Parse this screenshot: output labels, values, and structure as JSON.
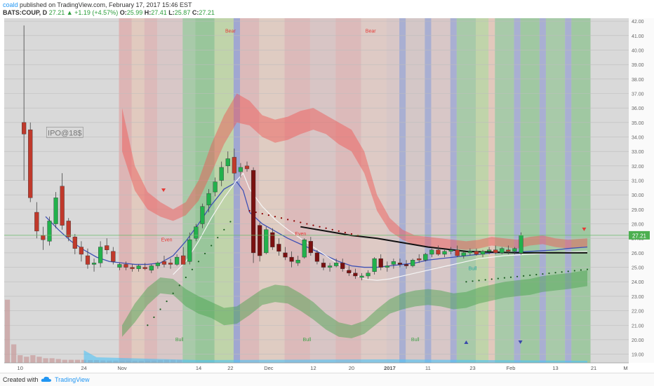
{
  "header": {
    "user": "coald",
    "published_text": "published on TradingView.com, February 17, 2017 15:46 EST",
    "symbol": "BATS:COUP, D",
    "last": "27.21",
    "change": "▲ +1.19 (+4.57%)",
    "o_label": "O:",
    "o_value": "25.99",
    "h_label": "H:",
    "h_value": "27.41",
    "l_label": "L:",
    "l_value": "25.87",
    "c_label": "C:",
    "c_value": "27.21"
  },
  "footer": {
    "created": "Created with",
    "brand": "TradingView"
  },
  "colors": {
    "up": "#22b14c",
    "down": "#c0392b",
    "downDark": "#7a1010",
    "redBand": "#e57373",
    "greenBand": "#4caf50",
    "blueBand": "#7986cb",
    "sma": "#3f51b5",
    "ema": "#f5f5f5",
    "maLong": "#111111",
    "priceLine": "#66bb6a"
  },
  "chart_data": {
    "type": "candlestick",
    "ylim": [
      18.4,
      42.2
    ],
    "yticks": [
      "19.00",
      "20.00",
      "21.00",
      "22.00",
      "23.00",
      "24.00",
      "25.00",
      "26.00",
      "27.00",
      "28.00",
      "29.00",
      "30.00",
      "31.00",
      "32.00",
      "33.00",
      "34.00",
      "35.00",
      "36.00",
      "37.00",
      "38.00",
      "39.00",
      "40.00",
      "41.00",
      "42.00"
    ],
    "last_price_label": "27.21",
    "last_price": 27.21,
    "xticks": [
      {
        "label": "10",
        "i": 2
      },
      {
        "label": "24",
        "i": 12
      },
      {
        "label": "Nov",
        "i": 18
      },
      {
        "label": "14",
        "i": 30
      },
      {
        "label": "22",
        "i": 35
      },
      {
        "label": "Dec",
        "i": 41
      },
      {
        "label": "12",
        "i": 48
      },
      {
        "label": "20",
        "i": 54
      },
      {
        "label": "2017",
        "i": 60
      },
      {
        "label": "11",
        "i": 66
      },
      {
        "label": "23",
        "i": 73
      },
      {
        "label": "Feb",
        "i": 79
      },
      {
        "label": "13",
        "i": 86
      },
      {
        "label": "21",
        "i": 92
      },
      {
        "label": "M",
        "i": 97
      }
    ],
    "candles": [
      [
        35.0,
        41.7,
        31.0,
        34.2
      ],
      [
        34.5,
        35.0,
        29.5,
        29.8
      ],
      [
        28.8,
        29.5,
        27.0,
        27.5
      ],
      [
        27.2,
        27.8,
        26.2,
        26.9
      ],
      [
        26.8,
        28.5,
        26.5,
        28.2
      ],
      [
        28.0,
        30.2,
        27.7,
        29.8
      ],
      [
        30.6,
        31.5,
        27.6,
        27.9
      ],
      [
        28.2,
        28.4,
        26.8,
        27.1
      ],
      [
        27.1,
        27.3,
        25.9,
        26.3
      ],
      [
        26.4,
        26.8,
        25.4,
        25.9
      ],
      [
        25.8,
        26.3,
        24.9,
        25.2
      ],
      [
        25.2,
        25.6,
        24.7,
        25.3
      ],
      [
        25.3,
        26.8,
        25.0,
        26.4
      ],
      [
        26.5,
        27.0,
        25.9,
        26.2
      ],
      [
        26.1,
        26.4,
        25.2,
        25.4
      ],
      [
        25.0,
        25.3,
        24.8,
        25.2
      ],
      [
        25.2,
        25.4,
        24.8,
        25.0
      ],
      [
        25.0,
        25.2,
        24.7,
        24.9
      ],
      [
        24.9,
        25.2,
        24.7,
        25.1
      ],
      [
        25.0,
        25.3,
        24.8,
        24.9
      ],
      [
        24.8,
        25.2,
        24.6,
        25.1
      ],
      [
        25.1,
        25.4,
        24.9,
        25.3
      ],
      [
        25.4,
        25.8,
        25.0,
        25.2
      ],
      [
        25.3,
        25.6,
        24.9,
        25.2
      ],
      [
        25.2,
        25.9,
        25.1,
        25.7
      ],
      [
        25.8,
        26.4,
        25.4,
        25.2
      ],
      [
        25.4,
        27.4,
        25.2,
        26.9
      ],
      [
        27.0,
        28.0,
        26.8,
        27.8
      ],
      [
        28.0,
        29.4,
        27.7,
        29.2
      ],
      [
        29.3,
        30.4,
        28.8,
        30.1
      ],
      [
        30.2,
        31.2,
        29.9,
        30.9
      ],
      [
        31.0,
        32.3,
        30.6,
        31.9
      ],
      [
        32.0,
        33.0,
        31.5,
        32.5
      ],
      [
        32.6,
        33.2,
        31.0,
        31.5
      ],
      [
        31.6,
        32.2,
        31.2,
        31.9
      ],
      [
        32.0,
        32.3,
        31.6,
        31.8
      ],
      [
        31.7,
        31.9,
        25.3,
        26.0
      ],
      [
        27.9,
        28.1,
        25.4,
        25.8
      ],
      [
        26.0,
        27.8,
        25.9,
        27.6
      ],
      [
        27.4,
        27.7,
        26.2,
        26.4
      ],
      [
        26.6,
        27.0,
        25.8,
        26.1
      ],
      [
        26.0,
        26.4,
        25.5,
        25.7
      ],
      [
        25.7,
        26.1,
        25.0,
        25.4
      ],
      [
        25.3,
        25.8,
        25.1,
        25.5
      ],
      [
        25.7,
        27.0,
        25.6,
        26.9
      ],
      [
        26.8,
        27.1,
        25.8,
        26.0
      ],
      [
        26.0,
        26.2,
        25.2,
        25.4
      ],
      [
        25.3,
        25.6,
        24.8,
        25.0
      ],
      [
        25.0,
        25.3,
        24.7,
        25.1
      ],
      [
        25.1,
        25.6,
        25.0,
        25.3
      ],
      [
        25.3,
        25.6,
        24.7,
        24.9
      ],
      [
        24.8,
        25.1,
        24.4,
        24.6
      ],
      [
        24.6,
        24.9,
        24.2,
        24.4
      ],
      [
        24.3,
        24.6,
        24.1,
        24.4
      ],
      [
        24.4,
        24.8,
        24.2,
        24.6
      ],
      [
        24.7,
        25.7,
        24.5,
        25.6
      ],
      [
        25.6,
        25.9,
        24.8,
        25.0
      ],
      [
        25.0,
        25.4,
        24.7,
        25.1
      ],
      [
        25.2,
        25.6,
        24.9,
        25.4
      ],
      [
        25.3,
        25.6,
        25.0,
        25.2
      ],
      [
        25.2,
        25.5,
        24.9,
        25.1
      ],
      [
        25.1,
        25.6,
        25.0,
        25.5
      ],
      [
        25.6,
        25.9,
        25.3,
        25.5
      ],
      [
        25.5,
        26.0,
        25.4,
        25.9
      ],
      [
        25.9,
        26.3,
        25.7,
        26.2
      ],
      [
        26.2,
        26.5,
        25.8,
        25.9
      ],
      [
        25.9,
        26.2,
        25.7,
        26.1
      ],
      [
        26.1,
        26.4,
        25.9,
        26.2
      ],
      [
        26.2,
        26.5,
        25.7,
        25.8
      ],
      [
        25.8,
        26.1,
        25.6,
        26.0
      ],
      [
        26.0,
        26.3,
        25.8,
        26.1
      ],
      [
        26.1,
        26.3,
        25.8,
        25.9
      ],
      [
        25.9,
        26.2,
        25.7,
        26.1
      ],
      [
        26.1,
        26.4,
        25.9,
        26.2
      ],
      [
        26.2,
        26.5,
        25.9,
        26.0
      ],
      [
        26.0,
        26.4,
        25.9,
        26.3
      ],
      [
        26.2,
        26.5,
        25.9,
        26.1
      ],
      [
        26.1,
        26.4,
        25.9,
        26.3
      ],
      [
        25.99,
        27.41,
        25.87,
        27.21
      ]
    ],
    "annotations": [
      {
        "text": "IPO@18$",
        "type": "box",
        "i": 9,
        "y": 34.3
      },
      {
        "text": "Bear",
        "type": "signal",
        "i": 35,
        "y": 41.2,
        "color": "#e53935"
      },
      {
        "text": "Bear",
        "type": "signal",
        "i": 57,
        "y": 41.2,
        "color": "#e53935"
      },
      {
        "text": "Bull",
        "type": "signal",
        "i": 27,
        "y": 19.9,
        "color": "#43a047"
      },
      {
        "text": "Bull",
        "type": "signal",
        "i": 47,
        "y": 19.9,
        "color": "#43a047"
      },
      {
        "text": "Bull",
        "type": "signal",
        "i": 64,
        "y": 19.9,
        "color": "#43a047"
      },
      {
        "text": "Even",
        "type": "label",
        "i": 25,
        "y": 26.8,
        "color": "#e53935"
      },
      {
        "text": "Even",
        "type": "label",
        "i": 46,
        "y": 27.2,
        "color": "#e53935"
      },
      {
        "text": "Bull",
        "type": "label",
        "i": 73,
        "y": 24.8,
        "color": "#26a69a"
      }
    ]
  }
}
